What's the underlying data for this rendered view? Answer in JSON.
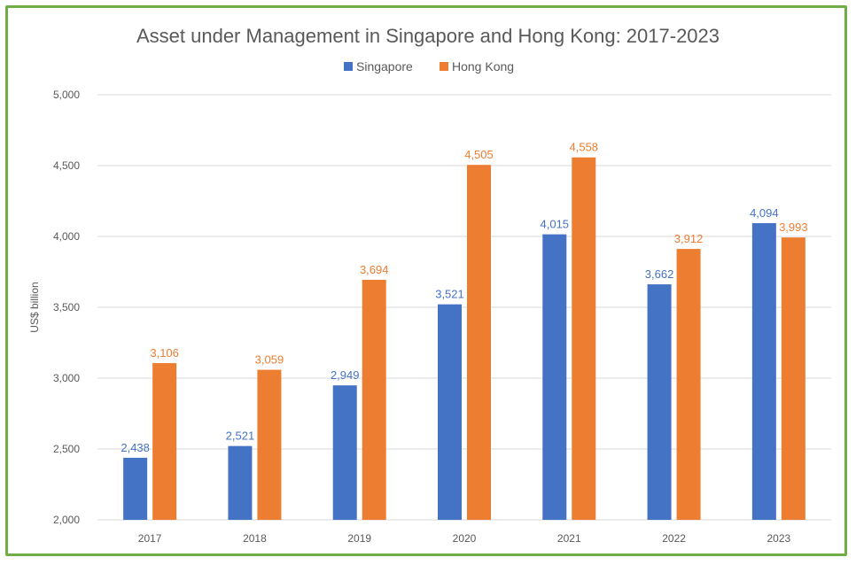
{
  "chart_data": {
    "type": "bar",
    "title": "Asset under Management in Singapore and Hong Kong: 2017-2023",
    "xlabel": "",
    "ylabel": "US$ billion",
    "categories": [
      "2017",
      "2018",
      "2019",
      "2020",
      "2021",
      "2022",
      "2023"
    ],
    "series": [
      {
        "name": "Singapore",
        "color": "#4472c4",
        "values": [
          2438,
          2521,
          2949,
          3521,
          4015,
          3662,
          4094
        ]
      },
      {
        "name": "Hong Kong",
        "color": "#ed7d31",
        "values": [
          3106,
          3059,
          3694,
          4505,
          4558,
          3912,
          3993
        ]
      }
    ],
    "data_labels": [
      [
        "2,438",
        "2,521",
        "2,949",
        "3,521",
        "4,015",
        "3,662",
        "4,094"
      ],
      [
        "3,106",
        "3,059",
        "3,694",
        "4,505",
        "4,558",
        "3,912",
        "3,993"
      ]
    ],
    "ylim": [
      2000,
      5000
    ],
    "yticks": [
      2000,
      2500,
      3000,
      3500,
      4000,
      4500,
      5000
    ],
    "ytick_labels": [
      "2,000",
      "2,500",
      "3,000",
      "3,500",
      "4,000",
      "4,500",
      "5,000"
    ],
    "grid": true,
    "legend_position": "top-center",
    "frame_color": "#70ad47"
  }
}
